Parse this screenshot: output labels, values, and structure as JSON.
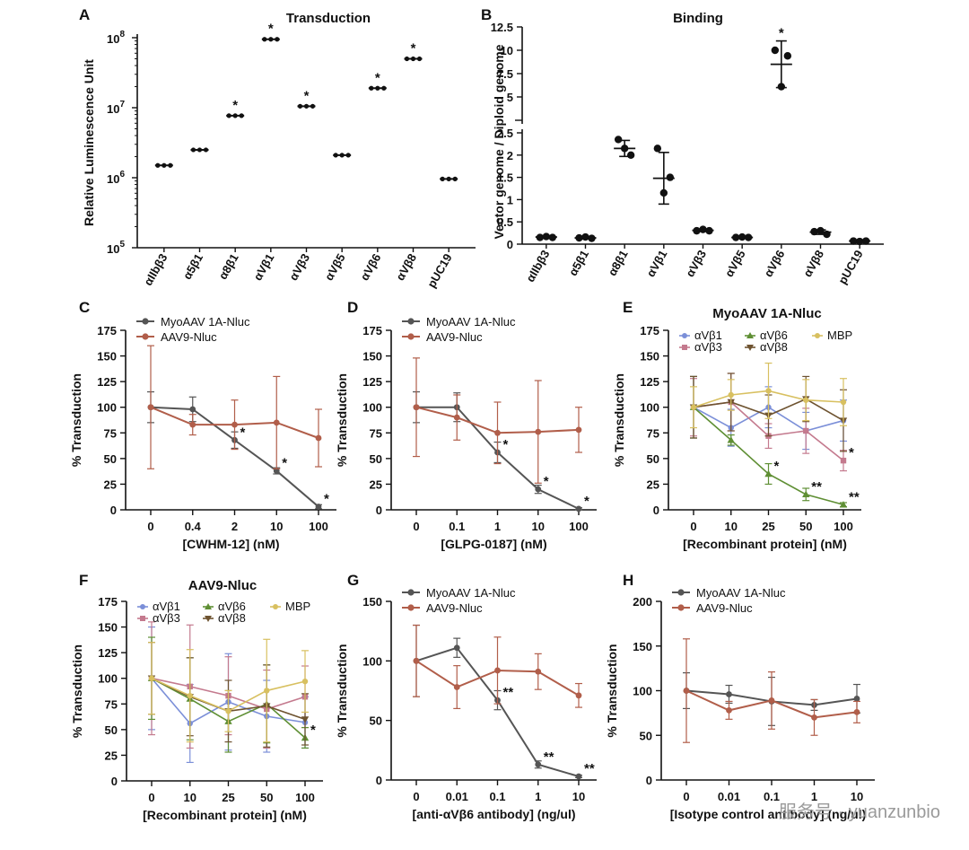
{
  "figure": {
    "watermark": "服务号 · yuanzunbio"
  },
  "chart_data": [
    {
      "panel": "A",
      "type": "scatter",
      "title": "Transduction",
      "ylabel": "Relative Luminescence Unit",
      "yscale": "log",
      "ylim": [
        100000,
        100000000
      ],
      "y_ticks": [
        100000,
        1000000,
        10000000,
        100000000
      ],
      "categories": [
        "αIIbβ3",
        "α5β1",
        "α8β1",
        "αVβ1",
        "αVβ3",
        "αVβ5",
        "αVβ6",
        "αVβ8",
        "pUC19"
      ],
      "values": [
        1500000,
        2500000,
        7700000,
        95000000,
        10500000,
        2100000,
        19000000,
        50000000,
        960000
      ],
      "significant": [
        false,
        false,
        true,
        true,
        true,
        false,
        true,
        true,
        false
      ]
    },
    {
      "panel": "B",
      "type": "scatter",
      "title": "Binding",
      "ylabel": "Vector genome / Diploid genome",
      "y_ticks_lower": [
        0,
        0.5,
        1,
        1.5,
        2,
        2.5
      ],
      "y_ticks_upper": [
        5,
        7.5,
        10,
        12.5
      ],
      "axis_break": [
        2.5,
        5
      ],
      "categories": [
        "αIIbβ3",
        "α5β1",
        "α8β1",
        "αVβ1",
        "αVβ3",
        "αVβ5",
        "αVβ6",
        "αVβ8",
        "pUC19"
      ],
      "points": [
        [
          0.15,
          0.17,
          0.15
        ],
        [
          0.14,
          0.16,
          0.13
        ],
        [
          2.35,
          2.15,
          2.0
        ],
        [
          2.15,
          1.5,
          1.15
        ],
        [
          0.3,
          0.33,
          0.3
        ],
        [
          0.15,
          0.16,
          0.15
        ],
        [
          10.0,
          9.4,
          6.1
        ],
        [
          0.28,
          0.3,
          0.22
        ],
        [
          0.07,
          0.06,
          0.07
        ]
      ],
      "mean": [
        0.16,
        0.14,
        2.15,
        1.48,
        0.31,
        0.15,
        8.5,
        0.27,
        0.07
      ],
      "sd": [
        0.02,
        0.02,
        0.18,
        0.58,
        0.02,
        0.01,
        2.5,
        0.05,
        0.01
      ],
      "significant": [
        false,
        false,
        false,
        false,
        false,
        false,
        true,
        false,
        false
      ]
    },
    {
      "panel": "C",
      "type": "line",
      "xlabel": "[CWHM-12] (nM)",
      "ylabel": "% Transduction",
      "categories": [
        "0",
        "0.4",
        "2",
        "10",
        "100"
      ],
      "ylim": [
        0,
        175
      ],
      "y_ticks": [
        0,
        25,
        50,
        75,
        100,
        125,
        150,
        175
      ],
      "legend_position": "top-left",
      "series": [
        {
          "name": "MyoAAV 1A-Nluc",
          "color": "#555555",
          "values": [
            100,
            98,
            68,
            38,
            3
          ],
          "err": [
            15,
            12,
            8,
            3,
            2
          ],
          "stars": [
            "",
            "",
            "*",
            "*",
            "*"
          ]
        },
        {
          "name": "AAV9-Nluc",
          "color": "#b15e4a",
          "values": [
            100,
            83,
            83,
            85,
            70
          ],
          "err": [
            60,
            10,
            24,
            45,
            28
          ],
          "stars": [
            "",
            "",
            "",
            "",
            ""
          ]
        }
      ]
    },
    {
      "panel": "D",
      "type": "line",
      "xlabel": "[GLPG-0187] (nM)",
      "ylabel": "% Transduction",
      "categories": [
        "0",
        "0.1",
        "1",
        "10",
        "100"
      ],
      "ylim": [
        0,
        175
      ],
      "y_ticks": [
        0,
        25,
        50,
        75,
        100,
        125,
        150,
        175
      ],
      "legend_position": "top-left",
      "series": [
        {
          "name": "MyoAAV 1A-Nluc",
          "color": "#555555",
          "values": [
            100,
            100,
            56,
            20,
            1
          ],
          "err": [
            15,
            14,
            10,
            4,
            1
          ],
          "stars": [
            "",
            "",
            "*",
            "*",
            "*"
          ]
        },
        {
          "name": "AAV9-Nluc",
          "color": "#b15e4a",
          "values": [
            100,
            90,
            75,
            76,
            78
          ],
          "err": [
            48,
            22,
            30,
            50,
            22
          ],
          "stars": [
            "",
            "",
            "",
            "",
            ""
          ]
        }
      ]
    },
    {
      "panel": "E",
      "type": "line",
      "title": "MyoAAV 1A-Nluc",
      "xlabel": "[Recombinant protein] (nM)",
      "ylabel": "% Transduction",
      "categories": [
        "0",
        "10",
        "25",
        "50",
        "100"
      ],
      "ylim": [
        0,
        175
      ],
      "y_ticks": [
        0,
        25,
        50,
        75,
        100,
        125,
        150,
        175
      ],
      "legend_position": "top",
      "series": [
        {
          "name": "αVβ1",
          "color": "#7b8fd8",
          "marker": "circle",
          "values": [
            100,
            80,
            100,
            77,
            87
          ],
          "err": [
            30,
            18,
            20,
            18,
            20
          ],
          "stars": [
            "",
            "",
            "",
            "",
            ""
          ]
        },
        {
          "name": "αVβ3",
          "color": "#c47a8e",
          "marker": "square",
          "values": [
            100,
            105,
            72,
            77,
            48
          ],
          "err": [
            28,
            28,
            12,
            22,
            10
          ],
          "stars": [
            "",
            "",
            "",
            "",
            "*"
          ]
        },
        {
          "name": "αVβ6",
          "color": "#5f8f34",
          "marker": "triangle",
          "values": [
            100,
            68,
            35,
            15,
            5
          ],
          "err": [
            30,
            5,
            10,
            6,
            2
          ],
          "stars": [
            "",
            "",
            "*",
            "**",
            "**"
          ]
        },
        {
          "name": "αVβ8",
          "color": "#6e5330",
          "marker": "triangle-down",
          "values": [
            100,
            105,
            92,
            108,
            87
          ],
          "err": [
            30,
            28,
            20,
            22,
            30
          ],
          "stars": [
            "",
            "",
            "",
            "",
            ""
          ]
        },
        {
          "name": "MBP",
          "color": "#d8c060",
          "marker": "circle",
          "values": [
            100,
            112,
            116,
            107,
            105
          ],
          "err": [
            20,
            15,
            27,
            20,
            23
          ],
          "stars": [
            "",
            "",
            "",
            "",
            ""
          ]
        }
      ]
    },
    {
      "panel": "F",
      "type": "line",
      "title": "AAV9-Nluc",
      "xlabel": "[Recombinant protein] (nM)",
      "ylabel": "% Transduction",
      "categories": [
        "0",
        "10",
        "25",
        "50",
        "100"
      ],
      "ylim": [
        0,
        175
      ],
      "y_ticks": [
        0,
        25,
        50,
        75,
        100,
        125,
        150,
        175
      ],
      "legend_position": "top",
      "series": [
        {
          "name": "αVβ1",
          "color": "#7b8fd8",
          "marker": "circle",
          "values": [
            100,
            56,
            77,
            63,
            57
          ],
          "err": [
            50,
            38,
            47,
            35,
            25
          ],
          "stars": [
            "",
            "",
            "",
            "",
            ""
          ]
        },
        {
          "name": "αVβ3",
          "color": "#c47a8e",
          "marker": "square",
          "values": [
            100,
            92,
            83,
            70,
            82
          ],
          "err": [
            55,
            60,
            38,
            38,
            30
          ],
          "stars": [
            "",
            "",
            "",
            "",
            ""
          ]
        },
        {
          "name": "αVβ6",
          "color": "#5f8f34",
          "marker": "triangle",
          "values": [
            100,
            80,
            58,
            75,
            42
          ],
          "err": [
            40,
            40,
            30,
            38,
            10
          ],
          "stars": [
            "",
            "",
            "",
            "",
            "*"
          ]
        },
        {
          "name": "αVβ8",
          "color": "#6e5330",
          "marker": "triangle-down",
          "values": [
            100,
            82,
            68,
            73,
            60
          ],
          "err": [
            35,
            38,
            30,
            40,
            25
          ],
          "stars": [
            "",
            "",
            "",
            "",
            ""
          ]
        },
        {
          "name": "MBP",
          "color": "#d8c060",
          "marker": "circle",
          "values": [
            100,
            83,
            68,
            88,
            97
          ],
          "err": [
            35,
            45,
            20,
            50,
            30
          ],
          "stars": [
            "",
            "",
            "",
            "",
            ""
          ]
        }
      ]
    },
    {
      "panel": "G",
      "type": "line",
      "xlabel": "[anti-αVβ6 antibody] (ng/ul)",
      "ylabel": "% Transduction",
      "categories": [
        "0",
        "0.01",
        "0.1",
        "1",
        "10"
      ],
      "ylim": [
        0,
        150
      ],
      "y_ticks": [
        0,
        50,
        100,
        150
      ],
      "legend_position": "top-left",
      "series": [
        {
          "name": "MyoAAV 1A-Nluc",
          "color": "#555555",
          "values": [
            100,
            111,
            67,
            13,
            3
          ],
          "err": [
            30,
            8,
            8,
            3,
            1
          ],
          "stars": [
            "",
            "",
            "**",
            "**",
            "**"
          ]
        },
        {
          "name": "AAV9-Nluc",
          "color": "#b15e4a",
          "values": [
            100,
            78,
            92,
            91,
            71
          ],
          "err": [
            30,
            18,
            28,
            15,
            10
          ],
          "stars": [
            "",
            "",
            "",
            "",
            ""
          ]
        }
      ]
    },
    {
      "panel": "H",
      "type": "line",
      "xlabel": "[Isotype control antibody] (ng/ul)",
      "ylabel": "% Transduction",
      "categories": [
        "0",
        "0.01",
        "0.1",
        "1",
        "10"
      ],
      "ylim": [
        0,
        200
      ],
      "y_ticks": [
        0,
        50,
        100,
        150,
        200
      ],
      "legend_position": "top-left",
      "series": [
        {
          "name": "MyoAAV 1A-Nluc",
          "color": "#555555",
          "values": [
            100,
            96,
            88,
            84,
            91
          ],
          "err": [
            20,
            10,
            27,
            6,
            16
          ],
          "stars": [
            "",
            "",
            "",
            "",
            ""
          ]
        },
        {
          "name": "AAV9-Nluc",
          "color": "#b15e4a",
          "values": [
            100,
            78,
            89,
            70,
            76
          ],
          "err": [
            58,
            10,
            32,
            20,
            12
          ],
          "stars": [
            "",
            "",
            "",
            "",
            ""
          ]
        }
      ]
    }
  ]
}
